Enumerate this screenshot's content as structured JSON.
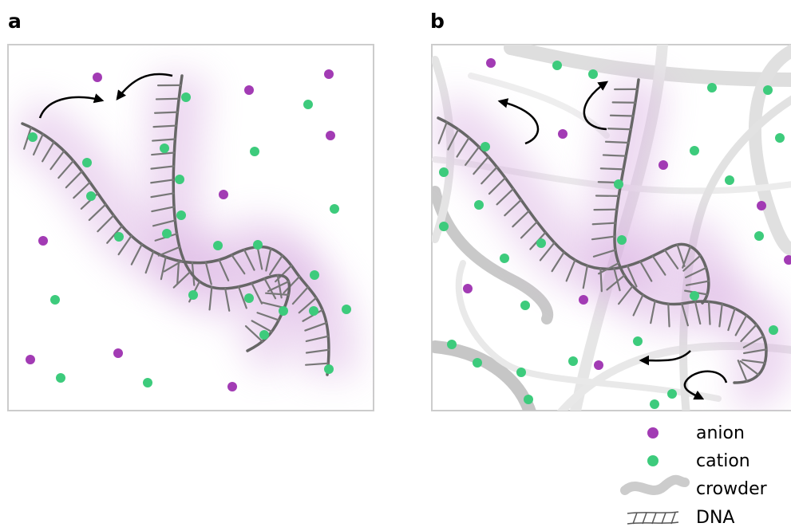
{
  "panels": [
    {
      "label": "a"
    },
    {
      "label": "b"
    }
  ],
  "legend": [
    {
      "label": "anion"
    },
    {
      "label": "cation"
    },
    {
      "label": "crowder"
    },
    {
      "label": "DNA"
    }
  ]
}
